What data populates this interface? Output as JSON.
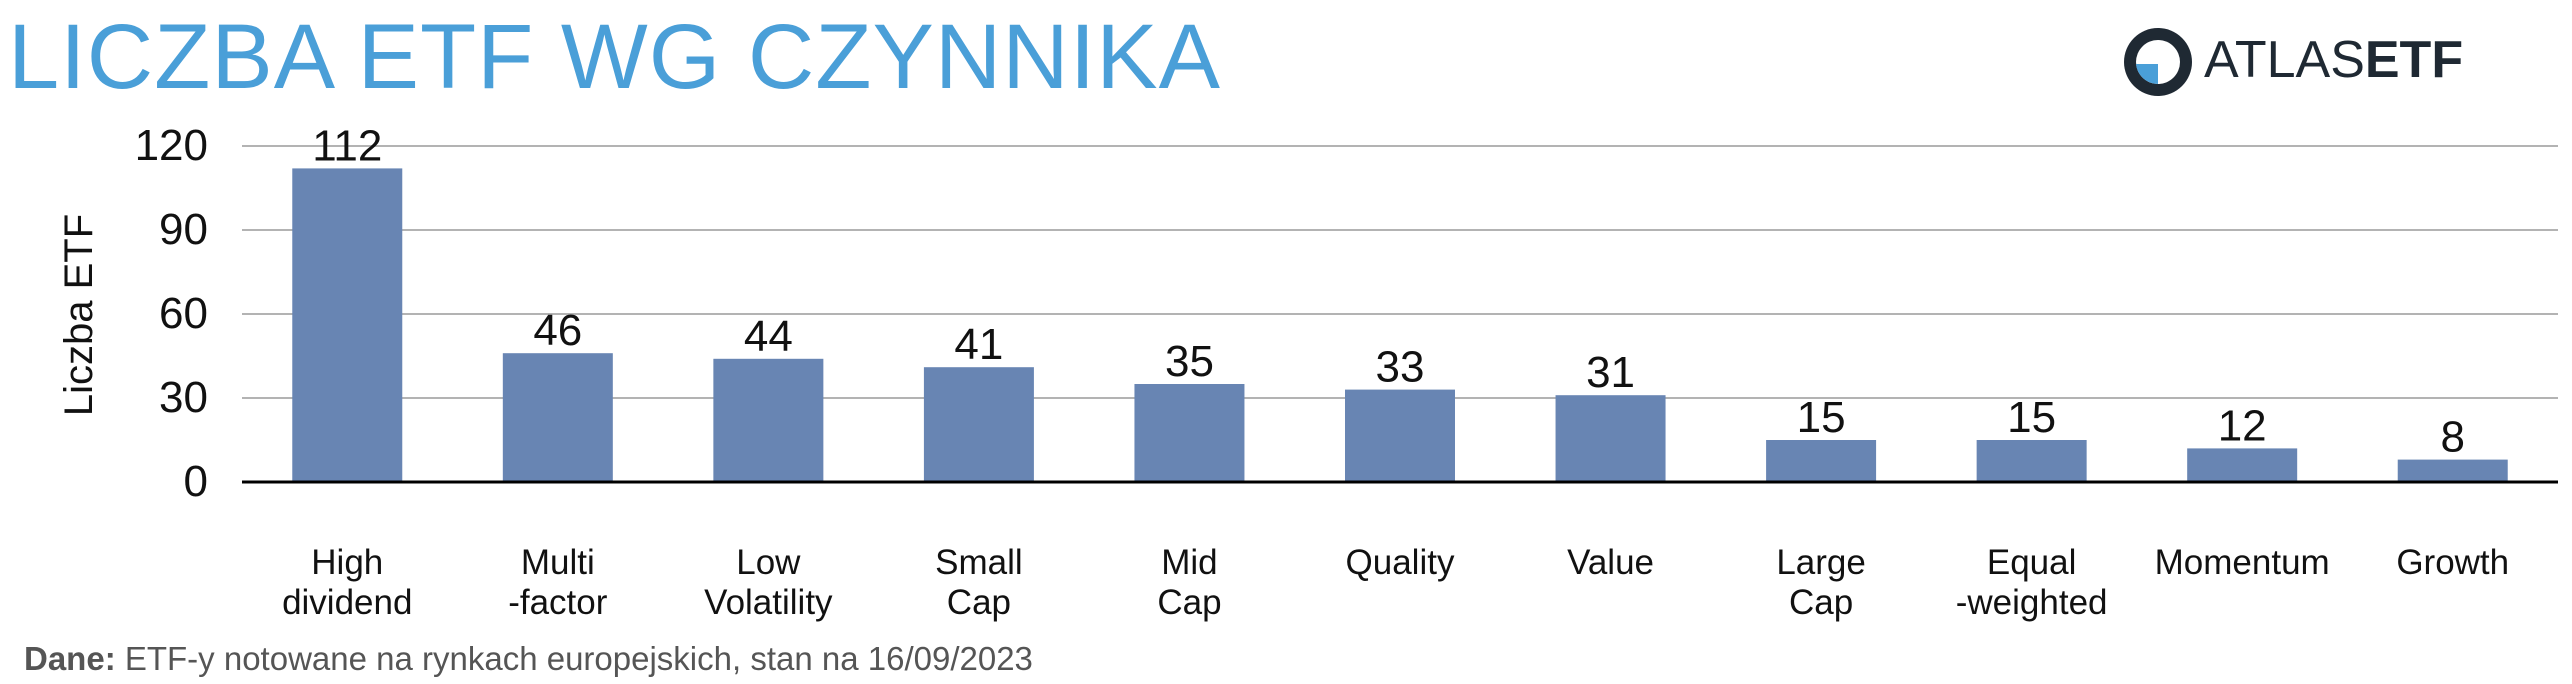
{
  "header": {
    "title": "LICZBA ETF WG CZYNNIKA"
  },
  "logo": {
    "text_light": "ATLAS",
    "text_bold": "ETF",
    "icon": "atlas-etf-circle-logo"
  },
  "source": {
    "label": "Dane:",
    "text": "ETF-y notowane na rynkach europejskich, stan na 16/09/2023"
  },
  "colors": {
    "bar": "#6885b3",
    "title": "#4a9fd8",
    "grid": "#b3b3b3",
    "axis": "#000000"
  },
  "chart_data": {
    "type": "bar",
    "ylabel": "Liczba ETF",
    "ylim": [
      0,
      120
    ],
    "yticks": [
      "0",
      "30",
      "60",
      "90",
      "120"
    ],
    "grid": true,
    "categories": [
      [
        "High",
        "dividend"
      ],
      [
        "Multi",
        "-factor"
      ],
      [
        "Low",
        "Volatility"
      ],
      [
        "Small",
        "Cap"
      ],
      [
        "Mid",
        "Cap"
      ],
      [
        "Quality"
      ],
      [
        "Value"
      ],
      [
        "Large",
        "Cap"
      ],
      [
        "Equal",
        "-weighted"
      ],
      [
        "Momentum"
      ],
      [
        "Growth"
      ]
    ],
    "values": [
      112,
      46,
      44,
      41,
      35,
      33,
      31,
      15,
      15,
      12,
      8
    ],
    "data_labels": [
      "112",
      "46",
      "44",
      "41",
      "35",
      "33",
      "31",
      "15",
      "15",
      "12",
      "8"
    ]
  }
}
